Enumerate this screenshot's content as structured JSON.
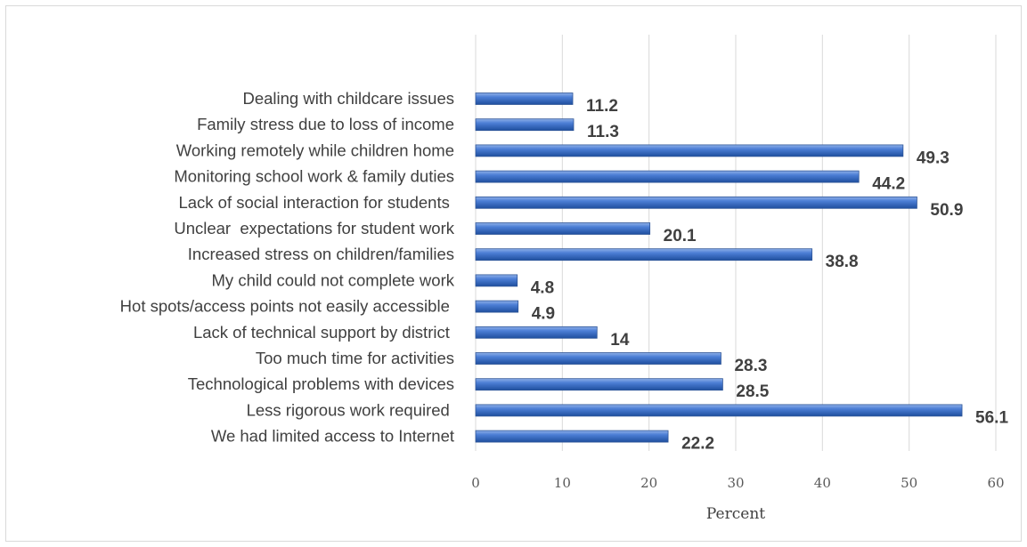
{
  "chart_data": {
    "type": "bar",
    "orientation": "horizontal",
    "categories": [
      "Dealing with childcare issues",
      "Family stress due to loss of income",
      "Working remotely while children home",
      "Monitoring school work & family duties",
      "Lack of social interaction for students ",
      "Unclear  expectations for student work",
      "Increased stress on children/families",
      "My child could not complete work",
      "Hot spots/access points not easily accessible ",
      "Lack of technical support by district ",
      "Too much time for activities",
      "Technological problems with devices",
      "Less rigorous work required ",
      "We had limited access to Internet"
    ],
    "values": [
      11.2,
      11.3,
      49.3,
      44.2,
      50.9,
      20.1,
      38.8,
      4.8,
      4.9,
      14,
      28.3,
      28.5,
      56.1,
      22.2
    ],
    "value_labels": [
      "11.2",
      "11.3",
      "49.3",
      "44.2",
      "50.9",
      "20.1",
      "38.8",
      "4.8",
      "4.9",
      "14",
      "28.3",
      "28.5",
      "56.1",
      "22.2"
    ],
    "xlim": [
      0,
      60
    ],
    "xticks": [
      "0",
      "10",
      "20",
      "30",
      "40",
      "50",
      "60"
    ],
    "xlabel": "Percent",
    "ylabel": "",
    "title": "",
    "grid": "vertical",
    "legend": "none",
    "bar_color": "#4472c4"
  }
}
